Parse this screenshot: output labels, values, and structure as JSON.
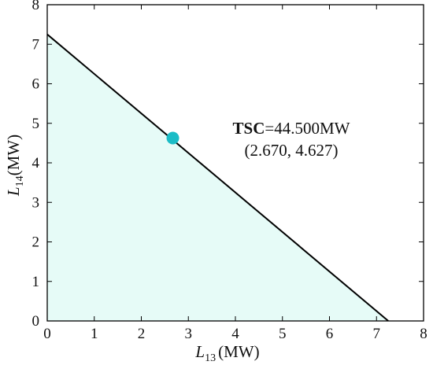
{
  "chart_data": {
    "type": "area",
    "xlim": [
      0,
      8
    ],
    "ylim": [
      0,
      8
    ],
    "xticks": [
      0,
      1,
      2,
      3,
      4,
      5,
      6,
      7,
      8
    ],
    "yticks": [
      0,
      1,
      2,
      3,
      4,
      5,
      6,
      7,
      8
    ],
    "xlabel": {
      "var": "L",
      "sub": "13",
      "unit": "(MW)"
    },
    "ylabel": {
      "var": "L",
      "sub": "14",
      "unit": "(MW)"
    },
    "grid": false,
    "boundary": {
      "x": [
        0,
        7.25
      ],
      "y": [
        7.25,
        0
      ],
      "color": "#000000"
    },
    "region_fill": "#e6fbf7",
    "point": {
      "x": 2.67,
      "y": 4.627,
      "color": "#1bbcc6"
    },
    "annotation": {
      "bold": "TSC",
      "rest": "=44.500MW",
      "coords": "(2.670, 4.627)"
    }
  }
}
